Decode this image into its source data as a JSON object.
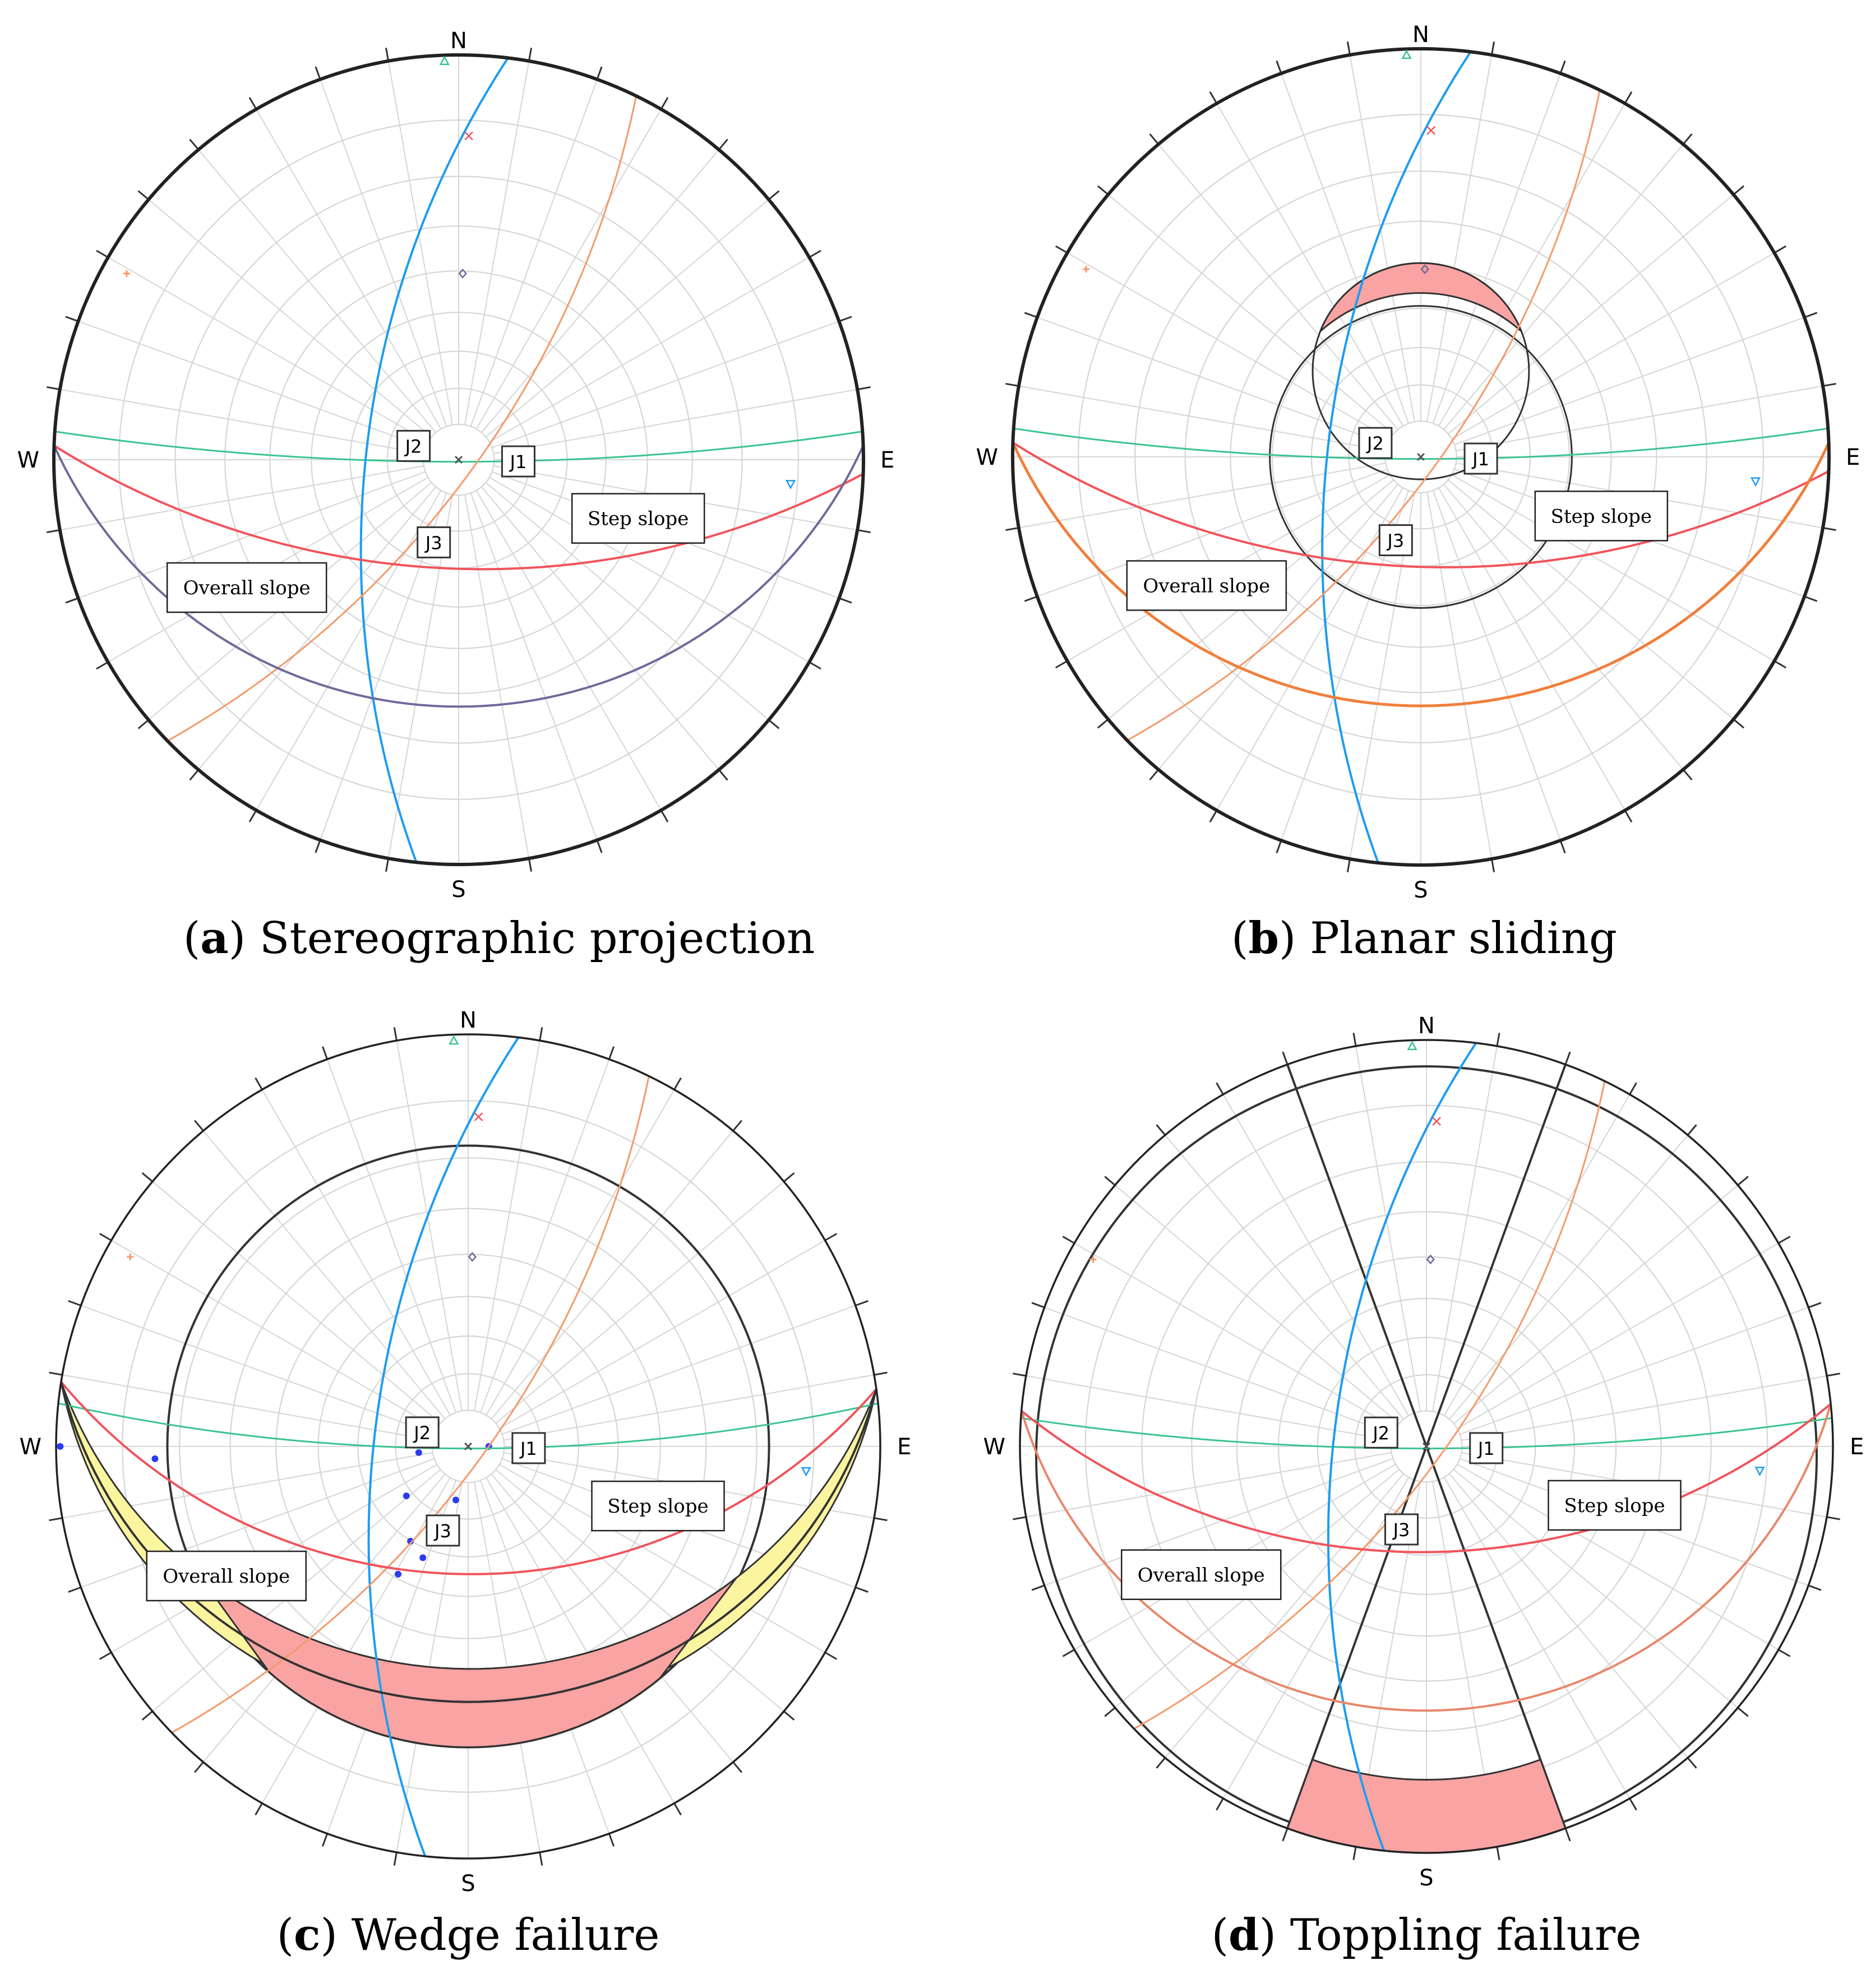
{
  "directions": {
    "n": "N",
    "s": "S",
    "e": "E",
    "w": "W"
  },
  "labels": {
    "j1": "J1",
    "j2": "J2",
    "j3": "J3",
    "step_slope": "Step slope",
    "overall_slope": "Overall slope"
  },
  "panels": [
    {
      "letter": "a",
      "title": "Stereographic projection"
    },
    {
      "letter": "b",
      "title": "Planar sliding"
    },
    {
      "letter": "c",
      "title": "Wedge failure"
    },
    {
      "letter": "d",
      "title": "Toppling failure"
    }
  ],
  "colors": {
    "j1": "#3bc48e",
    "j2": "#1e9cf0",
    "j3": "#f39a6b",
    "step_slope": "#f0545c",
    "overall_slope_a": "#6e6a9a",
    "overall_slope_b": "#f07f3c",
    "overall_slope_d": "#e8876a",
    "critical_fill": "#f9a3a3",
    "wedge_fill": "#fbf5a0",
    "grid": "#d6d6d6",
    "primitive": "#222222"
  }
}
